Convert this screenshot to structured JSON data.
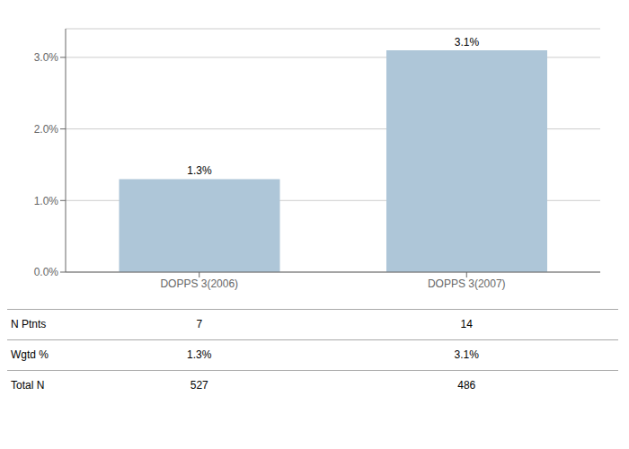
{
  "chart_data": {
    "type": "bar",
    "categories": [
      "DOPPS 3(2006)",
      "DOPPS 3(2007)"
    ],
    "values": [
      1.3,
      3.1
    ],
    "value_labels": [
      "1.3%",
      "3.1%"
    ],
    "data_labels": true,
    "color": "#aec6d8",
    "ylim": [
      0,
      3.4
    ],
    "yticks": [
      {
        "value": 0.0,
        "label": "0.0%"
      },
      {
        "value": 1.0,
        "label": "1.0%"
      },
      {
        "value": 2.0,
        "label": "2.0%"
      },
      {
        "value": 3.0,
        "label": "3.0%"
      }
    ],
    "grid": true,
    "table": {
      "rows": [
        "N Ptnts",
        "Wgtd %",
        "Total N"
      ],
      "cells": [
        [
          "7",
          "14"
        ],
        [
          "1.3%",
          "3.1%"
        ],
        [
          "527",
          "486"
        ]
      ]
    }
  }
}
